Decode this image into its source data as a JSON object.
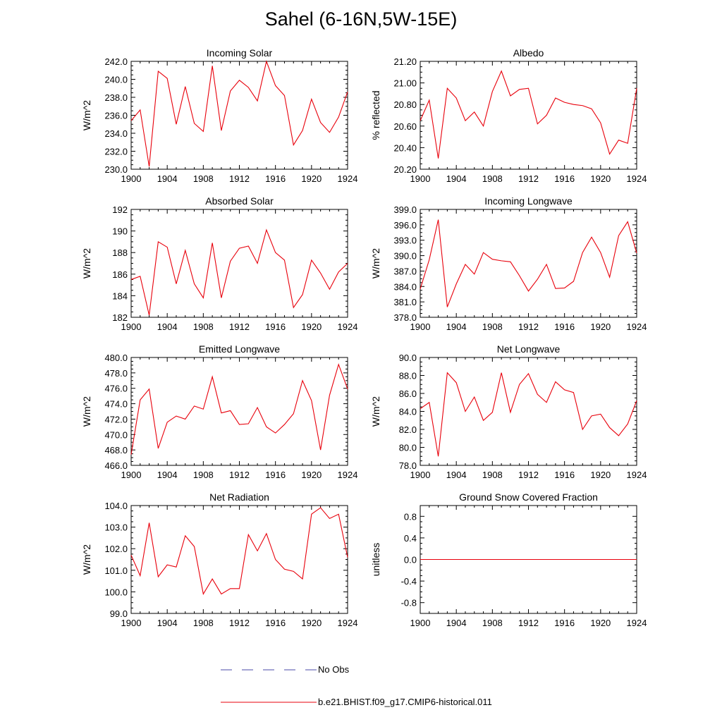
{
  "title": "Sahel (6-16N,5W-15E)",
  "colors": {
    "model": "#e8000b",
    "obs": "#4a4aa8",
    "axis": "#000000"
  },
  "x_ticks": [
    1900,
    1904,
    1908,
    1912,
    1916,
    1920,
    1924
  ],
  "legend": {
    "obs_label": "No Obs",
    "model_label": "b.e21.BHIST.f09_g17.CMIP6-historical.011"
  },
  "chart_data": [
    {
      "type": "line",
      "title": "Incoming Solar",
      "ylabel": "W/m^2",
      "xlim": [
        1900,
        1924
      ],
      "ylim": [
        230.0,
        242.0
      ],
      "y_ticks": [
        230.0,
        232.0,
        234.0,
        236.0,
        238.0,
        240.0,
        242.0
      ],
      "y_tick_labels": [
        "230.0",
        "232.0",
        "234.0",
        "236.0",
        "238.0",
        "240.0",
        "242.0"
      ],
      "x": [
        1900,
        1901,
        1902,
        1903,
        1904,
        1905,
        1906,
        1907,
        1908,
        1909,
        1910,
        1911,
        1912,
        1913,
        1914,
        1915,
        1916,
        1917,
        1918,
        1919,
        1920,
        1921,
        1922,
        1923,
        1924
      ],
      "series": [
        {
          "name": "b.e21.BHIST.f09_g17.CMIP6-historical.011",
          "values": [
            235.4,
            236.6,
            230.3,
            240.9,
            240.1,
            235.0,
            239.2,
            235.1,
            234.2,
            241.5,
            234.3,
            238.7,
            239.9,
            239.1,
            237.6,
            242.0,
            239.3,
            238.2,
            232.7,
            234.3,
            237.8,
            235.2,
            234.1,
            235.8,
            238.6
          ]
        }
      ]
    },
    {
      "type": "line",
      "title": "Albedo",
      "ylabel": "% reflected",
      "xlim": [
        1900,
        1924
      ],
      "ylim": [
        20.2,
        21.2
      ],
      "y_ticks": [
        20.2,
        20.4,
        20.6,
        20.8,
        21.0,
        21.2
      ],
      "y_tick_labels": [
        "20.20",
        "20.40",
        "20.60",
        "20.80",
        "21.00",
        "21.20"
      ],
      "x": [
        1900,
        1901,
        1902,
        1903,
        1904,
        1905,
        1906,
        1907,
        1908,
        1909,
        1910,
        1911,
        1912,
        1913,
        1914,
        1915,
        1916,
        1917,
        1918,
        1919,
        1920,
        1921,
        1922,
        1923,
        1924
      ],
      "series": [
        {
          "name": "b.e21.BHIST.f09_g17.CMIP6-historical.011",
          "values": [
            20.65,
            20.84,
            20.3,
            20.95,
            20.86,
            20.65,
            20.73,
            20.6,
            20.92,
            21.11,
            20.88,
            20.94,
            20.95,
            20.62,
            20.7,
            20.86,
            20.82,
            20.8,
            20.79,
            20.76,
            20.63,
            20.34,
            20.47,
            20.44,
            20.95
          ]
        }
      ]
    },
    {
      "type": "line",
      "title": "Absorbed Solar",
      "ylabel": "W/m^2",
      "xlim": [
        1900,
        1924
      ],
      "ylim": [
        182,
        192
      ],
      "y_ticks": [
        182,
        184,
        186,
        188,
        190,
        192
      ],
      "y_tick_labels": [
        "182",
        "184",
        "186",
        "188",
        "190",
        "192"
      ],
      "x": [
        1900,
        1901,
        1902,
        1903,
        1904,
        1905,
        1906,
        1907,
        1908,
        1909,
        1910,
        1911,
        1912,
        1913,
        1914,
        1915,
        1916,
        1917,
        1918,
        1919,
        1920,
        1921,
        1922,
        1923,
        1924
      ],
      "series": [
        {
          "name": "b.e21.BHIST.f09_g17.CMIP6-historical.011",
          "values": [
            185.5,
            185.8,
            182.2,
            189.0,
            188.5,
            185.1,
            188.2,
            185.1,
            183.8,
            188.9,
            183.8,
            187.2,
            188.4,
            188.6,
            187.0,
            190.1,
            188.0,
            187.3,
            182.9,
            184.1,
            187.3,
            186.1,
            184.6,
            186.2,
            187.0
          ]
        }
      ]
    },
    {
      "type": "line",
      "title": "Incoming Longwave",
      "ylabel": "W/m^2",
      "xlim": [
        1900,
        1924
      ],
      "ylim": [
        378.0,
        399.0
      ],
      "y_ticks": [
        378.0,
        381.0,
        384.0,
        387.0,
        390.0,
        393.0,
        396.0,
        399.0
      ],
      "y_tick_labels": [
        "378.0",
        "381.0",
        "384.0",
        "387.0",
        "390.0",
        "393.0",
        "396.0",
        "399.0"
      ],
      "x": [
        1900,
        1901,
        1902,
        1903,
        1904,
        1905,
        1906,
        1907,
        1908,
        1909,
        1910,
        1911,
        1912,
        1913,
        1914,
        1915,
        1916,
        1917,
        1918,
        1919,
        1920,
        1921,
        1922,
        1923,
        1924
      ],
      "series": [
        {
          "name": "b.e21.BHIST.f09_g17.CMIP6-historical.011",
          "values": [
            383.5,
            389.2,
            397.0,
            380.0,
            384.5,
            388.3,
            386.4,
            390.6,
            389.3,
            389.0,
            388.8,
            386.1,
            383.1,
            385.4,
            388.3,
            383.6,
            383.7,
            385.0,
            390.6,
            393.6,
            390.6,
            385.8,
            393.9,
            396.6,
            390.5
          ]
        }
      ]
    },
    {
      "type": "line",
      "title": "Emitted Longwave",
      "ylabel": "W/m^2",
      "xlim": [
        1900,
        1924
      ],
      "ylim": [
        466.0,
        480.0
      ],
      "y_ticks": [
        466.0,
        468.0,
        470.0,
        472.0,
        474.0,
        476.0,
        478.0,
        480.0
      ],
      "y_tick_labels": [
        "466.0",
        "468.0",
        "470.0",
        "472.0",
        "474.0",
        "476.0",
        "478.0",
        "480.0"
      ],
      "x": [
        1900,
        1901,
        1902,
        1903,
        1904,
        1905,
        1906,
        1907,
        1908,
        1909,
        1910,
        1911,
        1912,
        1913,
        1914,
        1915,
        1916,
        1917,
        1918,
        1919,
        1920,
        1921,
        1922,
        1923,
        1924
      ],
      "series": [
        {
          "name": "b.e21.BHIST.f09_g17.CMIP6-historical.011",
          "values": [
            467.4,
            474.5,
            475.9,
            468.2,
            471.6,
            472.4,
            472.0,
            473.7,
            473.3,
            477.5,
            472.8,
            473.1,
            471.3,
            471.4,
            473.5,
            471.0,
            470.2,
            471.3,
            472.7,
            477.0,
            474.4,
            468.0,
            475.1,
            479.1,
            475.9
          ]
        }
      ]
    },
    {
      "type": "line",
      "title": "Net Longwave",
      "ylabel": "W/m^2",
      "xlim": [
        1900,
        1924
      ],
      "ylim": [
        78.0,
        90.0
      ],
      "y_ticks": [
        78.0,
        80.0,
        82.0,
        84.0,
        86.0,
        88.0,
        90.0
      ],
      "y_tick_labels": [
        "78.0",
        "80.0",
        "82.0",
        "84.0",
        "86.0",
        "88.0",
        "90.0"
      ],
      "x": [
        1900,
        1901,
        1902,
        1903,
        1904,
        1905,
        1906,
        1907,
        1908,
        1909,
        1910,
        1911,
        1912,
        1913,
        1914,
        1915,
        1916,
        1917,
        1918,
        1919,
        1920,
        1921,
        1922,
        1923,
        1924
      ],
      "series": [
        {
          "name": "b.e21.BHIST.f09_g17.CMIP6-historical.011",
          "values": [
            84.3,
            85.0,
            79.0,
            88.3,
            87.2,
            84.0,
            85.6,
            83.0,
            83.9,
            88.3,
            83.9,
            87.0,
            88.2,
            85.9,
            85.0,
            87.3,
            86.4,
            86.1,
            82.0,
            83.5,
            83.7,
            82.2,
            81.3,
            82.6,
            85.2
          ]
        }
      ]
    },
    {
      "type": "line",
      "title": "Net Radiation",
      "ylabel": "W/m^2",
      "xlim": [
        1900,
        1924
      ],
      "ylim": [
        99.0,
        104.0
      ],
      "y_ticks": [
        99.0,
        100.0,
        101.0,
        102.0,
        103.0,
        104.0
      ],
      "y_tick_labels": [
        "99.0",
        "100.0",
        "101.0",
        "102.0",
        "103.0",
        "104.0"
      ],
      "x": [
        1900,
        1901,
        1902,
        1903,
        1904,
        1905,
        1906,
        1907,
        1908,
        1909,
        1910,
        1911,
        1912,
        1913,
        1914,
        1915,
        1916,
        1917,
        1918,
        1919,
        1920,
        1921,
        1922,
        1923,
        1924
      ],
      "series": [
        {
          "name": "b.e21.BHIST.f09_g17.CMIP6-historical.011",
          "values": [
            101.7,
            100.75,
            103.2,
            100.7,
            101.25,
            101.15,
            102.6,
            102.1,
            99.9,
            100.6,
            99.9,
            100.15,
            100.15,
            102.65,
            101.9,
            102.7,
            101.5,
            101.05,
            100.95,
            100.6,
            103.6,
            103.9,
            103.4,
            103.6,
            101.6
          ]
        }
      ]
    },
    {
      "type": "line",
      "title": "Ground Snow Covered Fraction",
      "ylabel": "unitless",
      "xlim": [
        1900,
        1924
      ],
      "ylim": [
        -1.0,
        1.0
      ],
      "y_ticks": [
        -0.8,
        -0.4,
        0.0,
        0.4,
        0.8
      ],
      "y_tick_labels": [
        "-0.8",
        "-0.4",
        "0.0",
        "0.4",
        "0.8"
      ],
      "x": [
        1900,
        1901,
        1902,
        1903,
        1904,
        1905,
        1906,
        1907,
        1908,
        1909,
        1910,
        1911,
        1912,
        1913,
        1914,
        1915,
        1916,
        1917,
        1918,
        1919,
        1920,
        1921,
        1922,
        1923,
        1924
      ],
      "series": [
        {
          "name": "b.e21.BHIST.f09_g17.CMIP6-historical.011",
          "values": [
            0,
            0,
            0,
            0,
            0,
            0,
            0,
            0,
            0,
            0,
            0,
            0,
            0,
            0,
            0,
            0,
            0,
            0,
            0,
            0,
            0,
            0,
            0,
            0,
            0
          ]
        }
      ]
    }
  ]
}
